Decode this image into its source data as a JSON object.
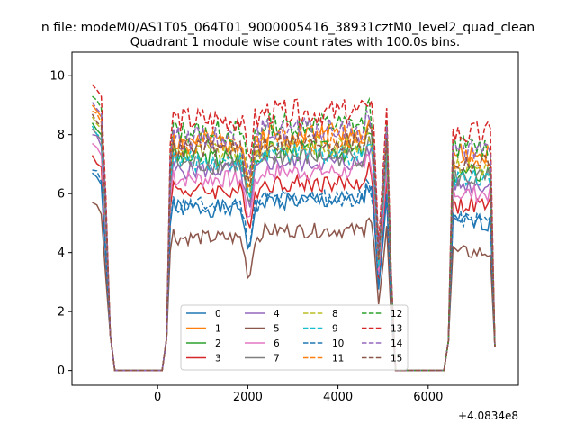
{
  "chart_data": {
    "type": "line",
    "suptitle": "n file: modeM0/AS1T05_064T01_9000005416_38931cztM0_level2_quad_clean",
    "title": "Quadrant 1 module wise count rates with 100.0s bins.",
    "xlabel": "",
    "ylabel": "",
    "offset_text": "+4.0834e8",
    "xlim": [
      -1900,
      8000
    ],
    "ylim": [
      -0.5,
      10.8
    ],
    "xticks": [
      0,
      2000,
      4000,
      6000
    ],
    "xtick_labels": [
      "0",
      "2000",
      "4000",
      "6000"
    ],
    "yticks": [
      0,
      2,
      4,
      6,
      8,
      10
    ],
    "ytick_labels": [
      "0",
      "2",
      "4",
      "6",
      "8",
      "10"
    ],
    "legend_location": "lower center",
    "legend_columns": 4,
    "series": [
      {
        "name": "0",
        "color": "#1f77b4",
        "dash": "solid",
        "base": 5.5,
        "amp": 0.3,
        "gap": 5.9,
        "seed": 1
      },
      {
        "name": "1",
        "color": "#ff7f0e",
        "dash": "solid",
        "base": 7.8,
        "amp": 0.4,
        "gap": 8.6,
        "seed": 2
      },
      {
        "name": "2",
        "color": "#2ca02c",
        "dash": "solid",
        "base": 7.2,
        "amp": 0.35,
        "gap": 7.7,
        "seed": 3
      },
      {
        "name": "3",
        "color": "#d62728",
        "dash": "solid",
        "base": 6.1,
        "amp": 0.3,
        "gap": 6.9,
        "seed": 4
      },
      {
        "name": "4",
        "color": "#9467bd",
        "dash": "solid",
        "base": 6.8,
        "amp": 0.3,
        "gap": 7.4,
        "seed": 5
      },
      {
        "name": "5",
        "color": "#8c564b",
        "dash": "solid",
        "base": 4.5,
        "amp": 0.25,
        "gap": 5.2,
        "seed": 6
      },
      {
        "name": "6",
        "color": "#e377c2",
        "dash": "solid",
        "base": 6.5,
        "amp": 0.3,
        "gap": 7.0,
        "seed": 7
      },
      {
        "name": "7",
        "color": "#7f7f7f",
        "dash": "solid",
        "base": 7.0,
        "amp": 0.35,
        "gap": 7.3,
        "seed": 8
      },
      {
        "name": "8",
        "color": "#bcbd22",
        "dash": "dashed",
        "base": 7.4,
        "amp": 0.35,
        "gap": 8.0,
        "seed": 9
      },
      {
        "name": "9",
        "color": "#17becf",
        "dash": "dashed",
        "base": 7.1,
        "amp": 0.35,
        "gap": 7.3,
        "seed": 10
      },
      {
        "name": "10",
        "color": "#1f77b4",
        "dash": "dashed",
        "base": 5.6,
        "amp": 0.3,
        "gap": 5.8,
        "seed": 11
      },
      {
        "name": "11",
        "color": "#ff7f0e",
        "dash": "dashed",
        "base": 7.6,
        "amp": 0.4,
        "gap": 8.3,
        "seed": 12
      },
      {
        "name": "12",
        "color": "#2ca02c",
        "dash": "dashed",
        "base": 8.1,
        "amp": 0.4,
        "gap": 8.7,
        "seed": 13
      },
      {
        "name": "13",
        "color": "#d62728",
        "dash": "dashed",
        "base": 8.5,
        "amp": 0.45,
        "gap": 9.5,
        "seed": 14
      },
      {
        "name": "14",
        "color": "#9467bd",
        "dash": "dashed",
        "base": 7.9,
        "amp": 0.4,
        "gap": 7.8,
        "seed": 15
      },
      {
        "name": "15",
        "color": "#8c564b",
        "dash": "dashed",
        "base": 7.5,
        "amp": 0.35,
        "gap": 7.6,
        "seed": 16
      }
    ]
  }
}
